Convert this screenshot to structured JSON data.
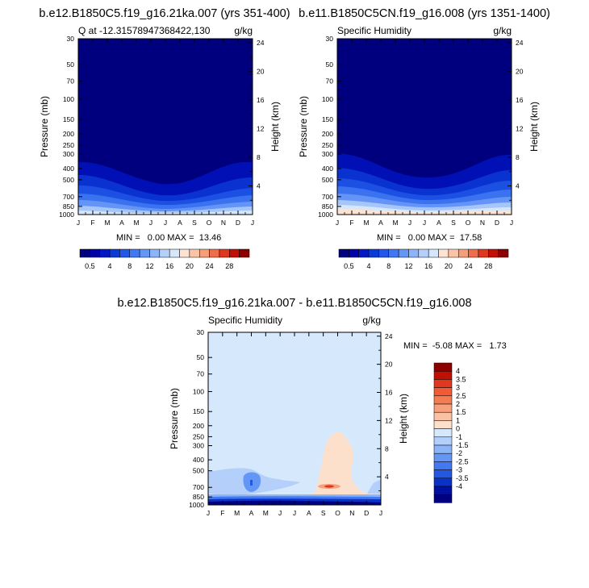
{
  "chart_data": [
    {
      "type": "heatmap",
      "title": "b.e12.B1850C5.f19_g16.21ka.007 (yrs 351-400)",
      "left_label": "Q at -12.31578947368422,130",
      "right_label": "g/kg",
      "ylabel": "Pressure (mb)",
      "y2label": "Height (km)",
      "x_ticks": [
        "J",
        "F",
        "M",
        "A",
        "M",
        "J",
        "J",
        "A",
        "S",
        "O",
        "N",
        "D",
        "J"
      ],
      "y_ticks": [
        30,
        50,
        70,
        100,
        150,
        200,
        250,
        300,
        400,
        500,
        700,
        850,
        1000
      ],
      "y_ticks_shown": [
        "30",
        "50",
        "70",
        "100",
        "150",
        "200",
        "250",
        "300",
        "400",
        "500",
        "700",
        "850",
        "1000"
      ],
      "y2_ticks": [
        "24",
        "20",
        "16",
        "12",
        "8",
        "4"
      ],
      "y2_tick_km": [
        24,
        20,
        16,
        12,
        8,
        4
      ],
      "stats": "MIN =   0.00 MAX =  13.46",
      "min": 0.0,
      "max": 13.46,
      "colorbar": {
        "levels": [
          0.5,
          1,
          2,
          4,
          6,
          8,
          10,
          12,
          14,
          16,
          18,
          20,
          22,
          24,
          26,
          28
        ],
        "labels": [
          "0.5",
          "4",
          "8",
          "12",
          "16",
          "20",
          "24",
          "28"
        ],
        "colors": [
          "#00007f",
          "#0000a8",
          "#0018c8",
          "#0a3ad8",
          "#2258e8",
          "#3f78f2",
          "#6496f6",
          "#8cb4f8",
          "#b4d0fa",
          "#d6e6fb",
          "#fde4d2",
          "#fbc4a6",
          "#f69e78",
          "#f06c4a",
          "#e0381e",
          "#c01006",
          "#8c0000"
        ]
      }
    },
    {
      "type": "heatmap",
      "title": "b.e11.B1850C5CN.f19_g16.008 (yrs 1351-1400)",
      "left_label": "Specific Humidity",
      "right_label": "g/kg",
      "ylabel": "Pressure (mb)",
      "y2label": "Height (km)",
      "x_ticks": [
        "J",
        "F",
        "M",
        "A",
        "M",
        "J",
        "J",
        "A",
        "S",
        "O",
        "N",
        "D",
        "J"
      ],
      "y_ticks_shown": [
        "30",
        "50",
        "70",
        "100",
        "150",
        "200",
        "250",
        "300",
        "400",
        "500",
        "700",
        "850",
        "1000"
      ],
      "y2_ticks": [
        "24",
        "20",
        "16",
        "12",
        "8",
        "4"
      ],
      "stats": "MIN =   0.00 MAX =  17.58",
      "min": 0.0,
      "max": 17.58
    },
    {
      "type": "heatmap",
      "title": "b.e12.B1850C5.f19_g16.21ka.007 - b.e11.B1850C5CN.f19_g16.008",
      "left_label": "Specific Humidity",
      "right_label": "g/kg",
      "ylabel": "Pressure (mb)",
      "y2label": "Height (km)",
      "x_ticks": [
        "J",
        "F",
        "M",
        "A",
        "M",
        "J",
        "J",
        "A",
        "S",
        "O",
        "N",
        "D",
        "J"
      ],
      "y_ticks_shown": [
        "30",
        "50",
        "70",
        "100",
        "150",
        "200",
        "250",
        "300",
        "400",
        "500",
        "700",
        "850",
        "1000"
      ],
      "y2_ticks": [
        "24",
        "20",
        "16",
        "12",
        "8",
        "4"
      ],
      "stats": "MIN =  -5.08 MAX =   1.73",
      "min": -5.08,
      "max": 1.73,
      "colorbar": {
        "levels": [
          -4,
          -3.5,
          -3,
          -2.5,
          -2,
          -1.5,
          -1,
          -0.5,
          0,
          0.5,
          1,
          1.5,
          2,
          2.5,
          3,
          3.5,
          4
        ],
        "labels": [
          "4",
          "3.5",
          "3",
          "2.5",
          "2",
          "1.5",
          "1",
          "0",
          "-1",
          "-1.5",
          "-2",
          "-2.5",
          "-3",
          "-3.5",
          "-4"
        ],
        "colors_top_to_bottom": [
          "#8c0000",
          "#c01006",
          "#e0381e",
          "#f05a34",
          "#f47c52",
          "#f7a07c",
          "#fac2a2",
          "#fde0cc",
          "#d6e8fb",
          "#b4d0fa",
          "#8cb4f8",
          "#6496f6",
          "#4478f0",
          "#2458e0",
          "#0a32c8",
          "#0010a0",
          "#000080"
        ]
      }
    }
  ]
}
